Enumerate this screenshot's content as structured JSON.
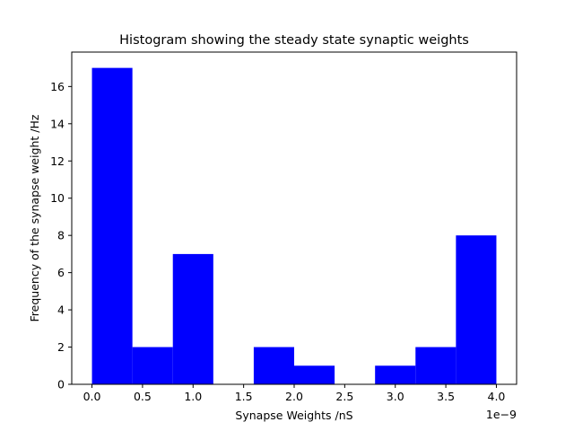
{
  "chart_data": {
    "type": "bar",
    "title": "Histogram showing the steady state synaptic weights",
    "xlabel": "Synapse Weights /nS",
    "ylabel": "Frequency of the synapse weight /Hz",
    "x_offset_label": "1e−9",
    "bin_edges": [
      0.0,
      0.4,
      0.8,
      1.2,
      1.6,
      2.0,
      2.4,
      2.8,
      3.2,
      3.6,
      4.0
    ],
    "values": [
      17,
      2,
      7,
      0,
      2,
      1,
      0,
      1,
      2,
      8
    ],
    "xlim": [
      -0.2,
      4.2
    ],
    "ylim": [
      0,
      17.85
    ],
    "xticks": [
      0.0,
      0.5,
      1.0,
      1.5,
      2.0,
      2.5,
      3.0,
      3.5,
      4.0
    ],
    "xtick_labels": [
      "0.0",
      "0.5",
      "1.0",
      "1.5",
      "2.0",
      "2.5",
      "3.0",
      "3.5",
      "4.0"
    ],
    "yticks": [
      0,
      2,
      4,
      6,
      8,
      10,
      12,
      14,
      16
    ],
    "ytick_labels": [
      "0",
      "2",
      "4",
      "6",
      "8",
      "10",
      "12",
      "14",
      "16"
    ],
    "bar_color": "#0000ff",
    "grid": false,
    "legend": "none"
  }
}
